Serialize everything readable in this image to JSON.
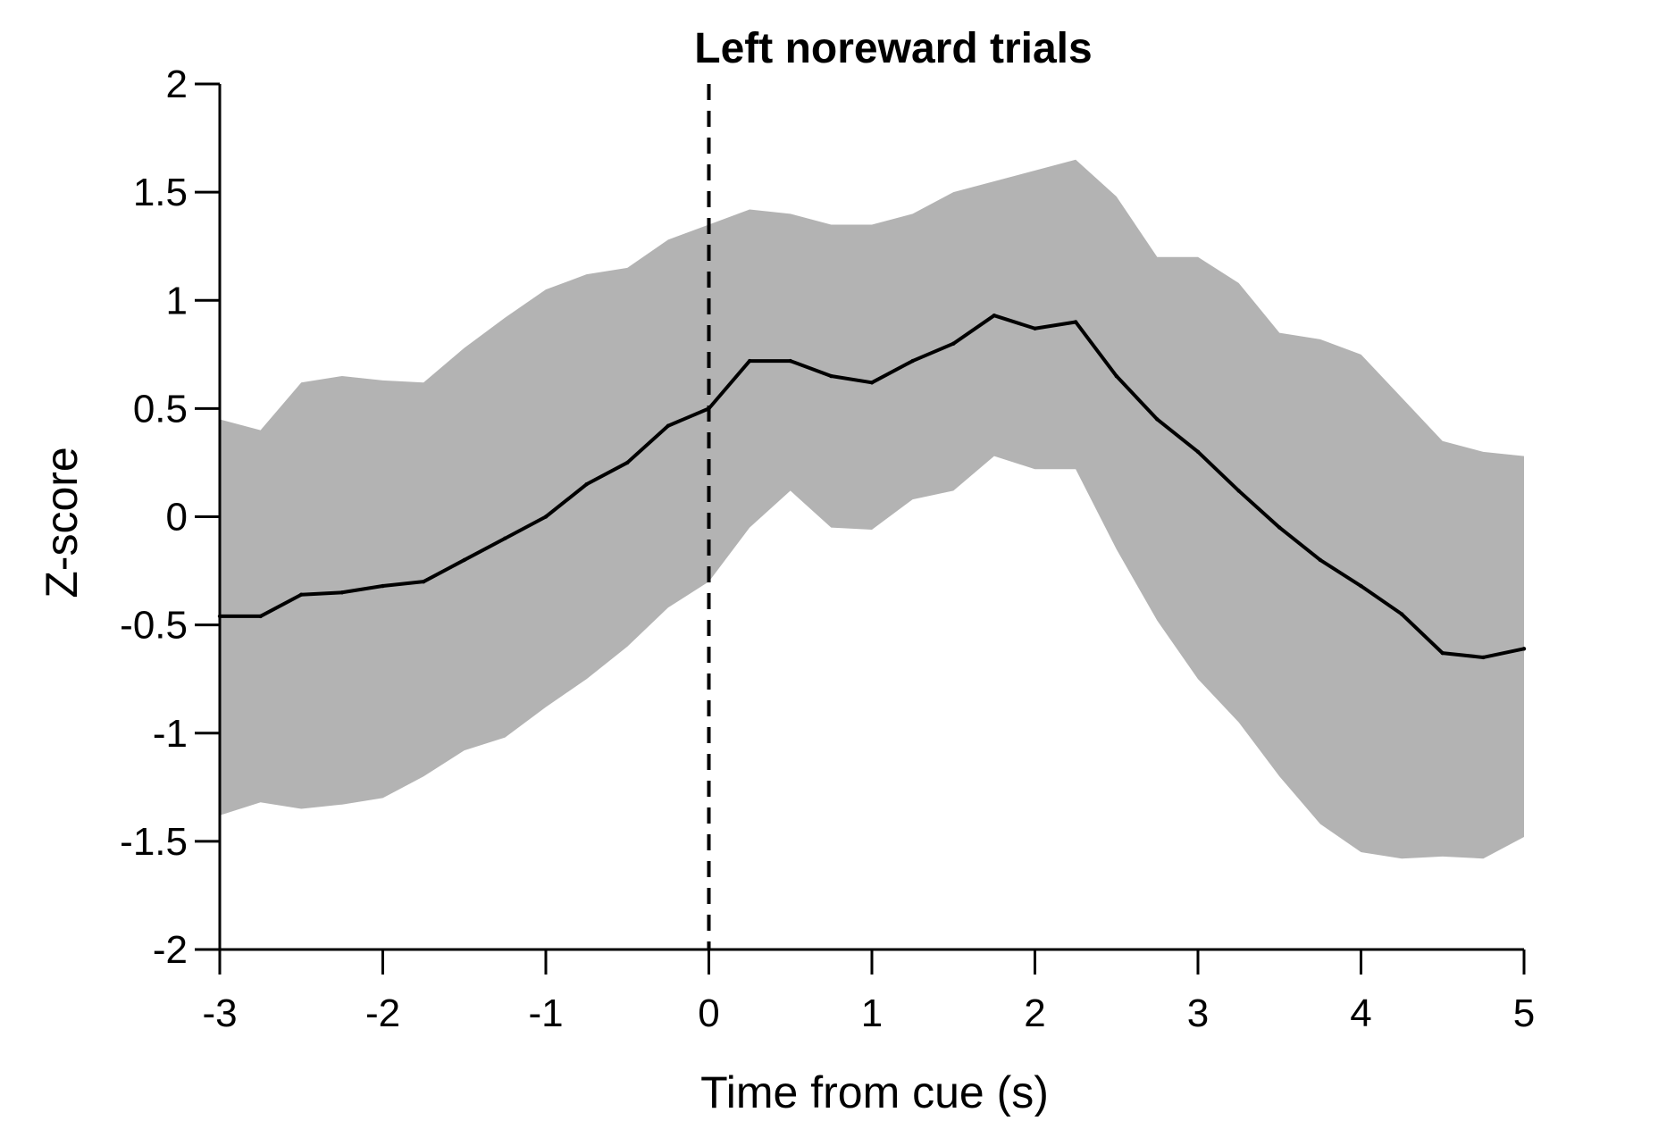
{
  "chart_data": {
    "type": "line",
    "title": "Left noreward trials",
    "xlabel": "Time from cue (s)",
    "ylabel": "Z-score",
    "xlim": [
      -3,
      5
    ],
    "ylim": [
      -2,
      2
    ],
    "xticks": [
      -3,
      -2,
      -1,
      0,
      1,
      2,
      3,
      4,
      5
    ],
    "xtick_labels": [
      "-3",
      "-2",
      "-1",
      "0",
      "1",
      "2",
      "3",
      "4",
      "5"
    ],
    "yticks": [
      2,
      1.5,
      1,
      0.5,
      0,
      -0.5,
      -1,
      -1.5,
      -2
    ],
    "ytick_labels": [
      "2",
      "1.5",
      "1",
      "0.5",
      "0",
      "-0.5",
      "-1",
      "-1.5",
      "-2"
    ],
    "grid": false,
    "legend": "none",
    "vline": {
      "x": 0,
      "style": "dashed",
      "color": "#000000"
    },
    "colors": {
      "mean_line": "#000000",
      "error_band": "#b3b3b3",
      "axes": "#000000"
    },
    "series": [
      {
        "kind": "mean",
        "x": [
          -3,
          -2.75,
          -2.5,
          -2.25,
          -2,
          -1.75,
          -1.5,
          -1.25,
          -1,
          -0.75,
          -0.5,
          -0.25,
          0,
          0.25,
          0.5,
          0.75,
          1,
          1.25,
          1.5,
          1.75,
          2,
          2.25,
          2.5,
          2.75,
          3,
          3.25,
          3.5,
          3.75,
          4,
          4.25,
          4.5,
          4.75,
          5
        ],
        "y": [
          -0.46,
          -0.46,
          -0.36,
          -0.35,
          -0.32,
          -0.3,
          -0.2,
          -0.1,
          0.0,
          0.15,
          0.25,
          0.42,
          0.5,
          0.72,
          0.72,
          0.65,
          0.62,
          0.72,
          0.8,
          0.93,
          0.87,
          0.9,
          0.65,
          0.45,
          0.3,
          0.12,
          -0.05,
          -0.2,
          -0.32,
          -0.45,
          -0.63,
          -0.65,
          -0.61
        ]
      },
      {
        "kind": "band_upper",
        "x": [
          -3,
          -2.75,
          -2.5,
          -2.25,
          -2,
          -1.75,
          -1.5,
          -1.25,
          -1,
          -0.75,
          -0.5,
          -0.25,
          0,
          0.25,
          0.5,
          0.75,
          1,
          1.25,
          1.5,
          1.75,
          2,
          2.25,
          2.5,
          2.75,
          3,
          3.25,
          3.5,
          3.75,
          4,
          4.25,
          4.5,
          4.75,
          5
        ],
        "y": [
          0.45,
          0.4,
          0.62,
          0.65,
          0.63,
          0.62,
          0.78,
          0.92,
          1.05,
          1.12,
          1.15,
          1.28,
          1.35,
          1.42,
          1.4,
          1.35,
          1.35,
          1.4,
          1.5,
          1.55,
          1.6,
          1.65,
          1.48,
          1.2,
          1.2,
          1.08,
          0.85,
          0.82,
          0.75,
          0.55,
          0.35,
          0.3,
          0.28
        ]
      },
      {
        "kind": "band_lower",
        "x": [
          -3,
          -2.75,
          -2.5,
          -2.25,
          -2,
          -1.75,
          -1.5,
          -1.25,
          -1,
          -0.75,
          -0.5,
          -0.25,
          0,
          0.25,
          0.5,
          0.75,
          1,
          1.25,
          1.5,
          1.75,
          2,
          2.25,
          2.5,
          2.75,
          3,
          3.25,
          3.5,
          3.75,
          4,
          4.25,
          4.5,
          4.75,
          5
        ],
        "y": [
          -1.38,
          -1.32,
          -1.35,
          -1.33,
          -1.3,
          -1.2,
          -1.08,
          -1.02,
          -0.88,
          -0.75,
          -0.6,
          -0.42,
          -0.3,
          -0.05,
          0.12,
          -0.05,
          -0.06,
          0.08,
          0.12,
          0.28,
          0.22,
          0.22,
          -0.15,
          -0.48,
          -0.75,
          -0.95,
          -1.2,
          -1.42,
          -1.55,
          -1.58,
          -1.57,
          -1.58,
          -1.48
        ]
      }
    ]
  }
}
